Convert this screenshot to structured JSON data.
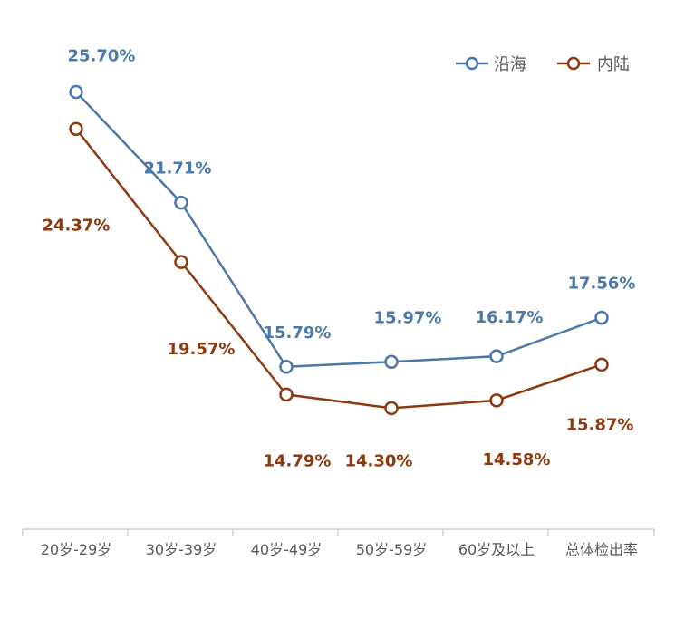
{
  "chart_data": {
    "type": "line",
    "categories": [
      "20岁-29岁",
      "30岁-39岁",
      "40岁-49岁",
      "50岁-59岁",
      "60岁及以上",
      "总体检出率"
    ],
    "series": [
      {
        "name": "沿海",
        "values": [
          25.7,
          21.71,
          15.79,
          15.97,
          16.17,
          17.56
        ],
        "labels": [
          "25.70%",
          "21.71%",
          "15.79%",
          "15.97%",
          "16.17%",
          "17.56%"
        ],
        "color": "#4A78A8"
      },
      {
        "name": "内陆",
        "values": [
          24.37,
          19.57,
          14.79,
          14.3,
          14.58,
          15.87
        ],
        "labels": [
          "24.37%",
          "19.57%",
          "14.79%",
          "14.30%",
          "14.58%",
          "15.87%"
        ],
        "color": "#8B3A0F"
      }
    ],
    "legend_position": "top-right",
    "grid": false,
    "marker": "hollow-circle"
  }
}
